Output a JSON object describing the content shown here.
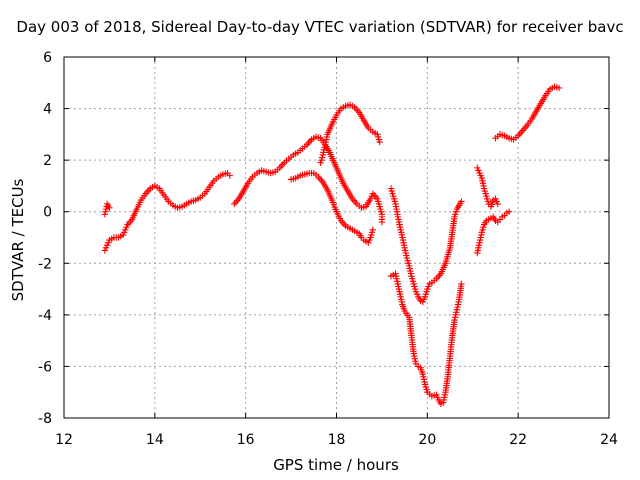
{
  "chart_data": {
    "type": "scatter",
    "title": "Day 003 of 2018, Sidereal Day-to-day VTEC variation (SDTVAR) for receiver bavc",
    "xlabel": "GPS time / hours",
    "ylabel": "SDTVAR / TECUs",
    "xlim": [
      12,
      24
    ],
    "ylim": [
      -8,
      6
    ],
    "xticks": [
      "12",
      "14",
      "16",
      "18",
      "20",
      "22",
      "24"
    ],
    "yticks": [
      "-8",
      "-6",
      "-4",
      "-2",
      "0",
      "2",
      "4",
      "6"
    ],
    "grid": true,
    "marker": "plus",
    "marker_color": "#ff0000",
    "series": [
      {
        "points": [
          [
            12.9,
            -0.1
          ],
          [
            12.95,
            0.3
          ],
          [
            13.0,
            0.15
          ]
        ]
      },
      {
        "points": [
          [
            12.9,
            -1.5
          ],
          [
            12.95,
            -1.3
          ],
          [
            13.0,
            -1.1
          ],
          [
            13.1,
            -1.0
          ],
          [
            13.2,
            -1.0
          ],
          [
            13.3,
            -0.9
          ],
          [
            13.35,
            -0.7
          ],
          [
            13.4,
            -0.5
          ],
          [
            13.5,
            -0.3
          ],
          [
            13.6,
            0.1
          ],
          [
            13.7,
            0.45
          ],
          [
            13.8,
            0.7
          ],
          [
            13.9,
            0.9
          ],
          [
            14.0,
            1.0
          ],
          [
            14.1,
            0.9
          ],
          [
            14.2,
            0.65
          ],
          [
            14.3,
            0.4
          ],
          [
            14.4,
            0.25
          ],
          [
            14.5,
            0.15
          ],
          [
            14.6,
            0.2
          ],
          [
            14.7,
            0.3
          ],
          [
            14.8,
            0.4
          ],
          [
            14.9,
            0.45
          ],
          [
            15.0,
            0.55
          ],
          [
            15.1,
            0.7
          ],
          [
            15.2,
            0.95
          ],
          [
            15.3,
            1.2
          ],
          [
            15.4,
            1.35
          ],
          [
            15.5,
            1.45
          ],
          [
            15.6,
            1.5
          ],
          [
            15.65,
            1.4
          ]
        ]
      },
      {
        "points": [
          [
            15.75,
            0.3
          ],
          [
            15.85,
            0.5
          ],
          [
            15.95,
            0.8
          ],
          [
            16.05,
            1.1
          ],
          [
            16.15,
            1.35
          ],
          [
            16.25,
            1.5
          ],
          [
            16.35,
            1.6
          ],
          [
            16.45,
            1.55
          ],
          [
            16.55,
            1.5
          ],
          [
            16.65,
            1.55
          ],
          [
            16.75,
            1.7
          ],
          [
            16.85,
            1.9
          ],
          [
            16.95,
            2.05
          ],
          [
            17.05,
            2.2
          ],
          [
            17.15,
            2.3
          ],
          [
            17.25,
            2.45
          ],
          [
            17.35,
            2.6
          ],
          [
            17.45,
            2.8
          ],
          [
            17.55,
            2.9
          ],
          [
            17.65,
            2.85
          ],
          [
            17.75,
            2.6
          ],
          [
            17.85,
            2.3
          ],
          [
            17.95,
            1.9
          ],
          [
            18.05,
            1.5
          ],
          [
            18.15,
            1.1
          ],
          [
            18.25,
            0.8
          ],
          [
            18.35,
            0.5
          ],
          [
            18.45,
            0.3
          ],
          [
            18.55,
            0.15
          ],
          [
            18.65,
            0.2
          ],
          [
            18.75,
            0.5
          ],
          [
            18.8,
            0.7
          ],
          [
            18.9,
            0.5
          ],
          [
            18.95,
            0.2
          ],
          [
            19.0,
            -0.1
          ],
          [
            19.0,
            -0.4
          ]
        ]
      },
      {
        "points": [
          [
            17.0,
            1.25
          ],
          [
            17.1,
            1.3
          ],
          [
            17.2,
            1.4
          ],
          [
            17.3,
            1.45
          ],
          [
            17.4,
            1.5
          ],
          [
            17.5,
            1.5
          ],
          [
            17.6,
            1.35
          ],
          [
            17.7,
            1.15
          ],
          [
            17.8,
            0.85
          ],
          [
            17.9,
            0.45
          ],
          [
            18.0,
            0.0
          ],
          [
            18.1,
            -0.35
          ],
          [
            18.2,
            -0.55
          ],
          [
            18.3,
            -0.65
          ],
          [
            18.4,
            -0.75
          ],
          [
            18.5,
            -0.85
          ],
          [
            18.55,
            -1.0
          ],
          [
            18.6,
            -1.1
          ],
          [
            18.7,
            -1.2
          ],
          [
            18.75,
            -1.0
          ],
          [
            18.8,
            -0.7
          ]
        ]
      },
      {
        "points": [
          [
            17.65,
            1.9
          ],
          [
            17.7,
            2.2
          ],
          [
            17.75,
            2.6
          ],
          [
            17.8,
            3.0
          ],
          [
            17.9,
            3.4
          ],
          [
            18.0,
            3.75
          ],
          [
            18.1,
            4.0
          ],
          [
            18.2,
            4.1
          ],
          [
            18.3,
            4.15
          ],
          [
            18.4,
            4.05
          ],
          [
            18.5,
            3.85
          ],
          [
            18.6,
            3.55
          ],
          [
            18.7,
            3.25
          ],
          [
            18.8,
            3.1
          ],
          [
            18.9,
            3.0
          ],
          [
            18.95,
            2.7
          ]
        ]
      },
      {
        "points": [
          [
            19.2,
            0.9
          ],
          [
            19.25,
            0.6
          ],
          [
            19.3,
            0.3
          ],
          [
            19.35,
            -0.2
          ],
          [
            19.4,
            -0.6
          ],
          [
            19.45,
            -1.0
          ],
          [
            19.5,
            -1.4
          ],
          [
            19.55,
            -1.8
          ],
          [
            19.6,
            -2.1
          ],
          [
            19.65,
            -2.5
          ],
          [
            19.7,
            -2.8
          ],
          [
            19.75,
            -3.1
          ],
          [
            19.8,
            -3.3
          ],
          [
            19.85,
            -3.45
          ],
          [
            19.9,
            -3.5
          ],
          [
            19.95,
            -3.3
          ],
          [
            20.0,
            -3.0
          ],
          [
            20.05,
            -2.8
          ],
          [
            20.1,
            -2.75
          ],
          [
            20.2,
            -2.6
          ],
          [
            20.3,
            -2.4
          ],
          [
            20.4,
            -2.0
          ],
          [
            20.5,
            -1.4
          ],
          [
            20.55,
            -0.8
          ],
          [
            20.6,
            -0.2
          ],
          [
            20.65,
            0.1
          ],
          [
            20.7,
            0.25
          ],
          [
            20.75,
            0.4
          ]
        ]
      },
      {
        "points": [
          [
            19.2,
            -2.5
          ],
          [
            19.3,
            -2.4
          ],
          [
            19.35,
            -2.8
          ],
          [
            19.4,
            -3.2
          ],
          [
            19.45,
            -3.6
          ],
          [
            19.5,
            -3.85
          ],
          [
            19.6,
            -4.1
          ],
          [
            19.65,
            -4.8
          ],
          [
            19.7,
            -5.5
          ],
          [
            19.75,
            -5.9
          ],
          [
            19.8,
            -6.0
          ],
          [
            19.85,
            -6.05
          ],
          [
            19.9,
            -6.3
          ],
          [
            19.95,
            -6.7
          ],
          [
            20.0,
            -7.0
          ],
          [
            20.1,
            -7.15
          ],
          [
            20.2,
            -7.1
          ],
          [
            20.25,
            -7.3
          ],
          [
            20.3,
            -7.45
          ],
          [
            20.35,
            -7.4
          ],
          [
            20.4,
            -7.0
          ],
          [
            20.45,
            -6.4
          ],
          [
            20.5,
            -5.6
          ],
          [
            20.55,
            -4.8
          ],
          [
            20.6,
            -4.2
          ],
          [
            20.65,
            -3.8
          ],
          [
            20.7,
            -3.4
          ],
          [
            20.75,
            -2.8
          ]
        ]
      },
      {
        "points": [
          [
            21.1,
            -1.6
          ],
          [
            21.15,
            -1.2
          ],
          [
            21.2,
            -0.8
          ],
          [
            21.25,
            -0.5
          ],
          [
            21.3,
            -0.35
          ],
          [
            21.4,
            -0.25
          ],
          [
            21.45,
            -0.2
          ],
          [
            21.5,
            -0.35
          ],
          [
            21.55,
            -0.4
          ],
          [
            21.6,
            -0.3
          ],
          [
            21.65,
            -0.2
          ],
          [
            21.7,
            -0.15
          ],
          [
            21.75,
            -0.05
          ],
          [
            21.8,
            0.0
          ]
        ]
      },
      {
        "points": [
          [
            21.1,
            1.7
          ],
          [
            21.15,
            1.5
          ],
          [
            21.2,
            1.3
          ],
          [
            21.25,
            0.9
          ],
          [
            21.3,
            0.6
          ],
          [
            21.35,
            0.3
          ],
          [
            21.4,
            0.2
          ],
          [
            21.45,
            0.45
          ],
          [
            21.5,
            0.5
          ],
          [
            21.55,
            0.3
          ]
        ]
      },
      {
        "points": [
          [
            21.5,
            2.85
          ],
          [
            21.6,
            3.0
          ],
          [
            21.7,
            2.95
          ],
          [
            21.8,
            2.85
          ],
          [
            21.9,
            2.8
          ],
          [
            22.0,
            2.95
          ],
          [
            22.1,
            3.15
          ],
          [
            22.2,
            3.35
          ],
          [
            22.3,
            3.6
          ],
          [
            22.4,
            3.9
          ],
          [
            22.5,
            4.2
          ],
          [
            22.6,
            4.5
          ],
          [
            22.7,
            4.75
          ],
          [
            22.8,
            4.85
          ],
          [
            22.9,
            4.8
          ]
        ]
      }
    ]
  }
}
